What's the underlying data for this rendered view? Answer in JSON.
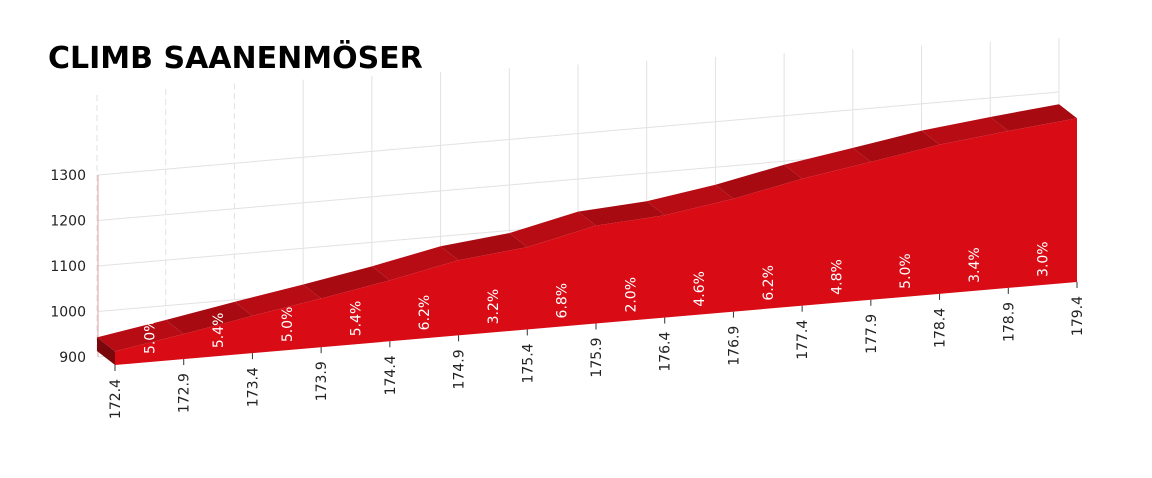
{
  "chart_data": {
    "type": "area",
    "title": "CLIMB SAANENMÖSER",
    "x": [
      172.4,
      172.9,
      173.4,
      173.9,
      174.4,
      174.9,
      175.4,
      175.9,
      176.4,
      176.9,
      177.4,
      177.9,
      178.4,
      178.9,
      179.4
    ],
    "xlim": [
      172.4,
      179.4
    ],
    "xticks": [
      172.4,
      172.9,
      173.4,
      173.9,
      174.4,
      174.9,
      175.4,
      175.9,
      176.4,
      176.9,
      177.4,
      177.9,
      178.4,
      178.9,
      179.4
    ],
    "ylim": [
      900,
      1300
    ],
    "yticks": [
      900,
      1000,
      1100,
      1200,
      1300
    ],
    "grid": true,
    "series": [
      {
        "color": "#d90b15",
        "values": [
          930,
          955,
          982,
          1007,
          1034,
          1065,
          1081,
          1115,
          1125,
          1148,
          1179,
          1203,
          1228,
          1245,
          1260
        ]
      }
    ],
    "gradients": {
      "values": [
        5.0,
        5.4,
        5.0,
        5.4,
        6.2,
        3.2,
        6.8,
        2.0,
        4.6,
        6.2,
        4.8,
        5.0,
        3.4,
        3.0
      ],
      "value_labels": [
        "5.0%",
        "5.4%",
        "5.0%",
        "5.4%",
        "6.2%",
        "3.2%",
        "6.8%",
        "2.0%",
        "4.6%",
        "6.2%",
        "4.8%",
        "5.0%",
        "3.4%",
        "3.0%"
      ]
    }
  }
}
